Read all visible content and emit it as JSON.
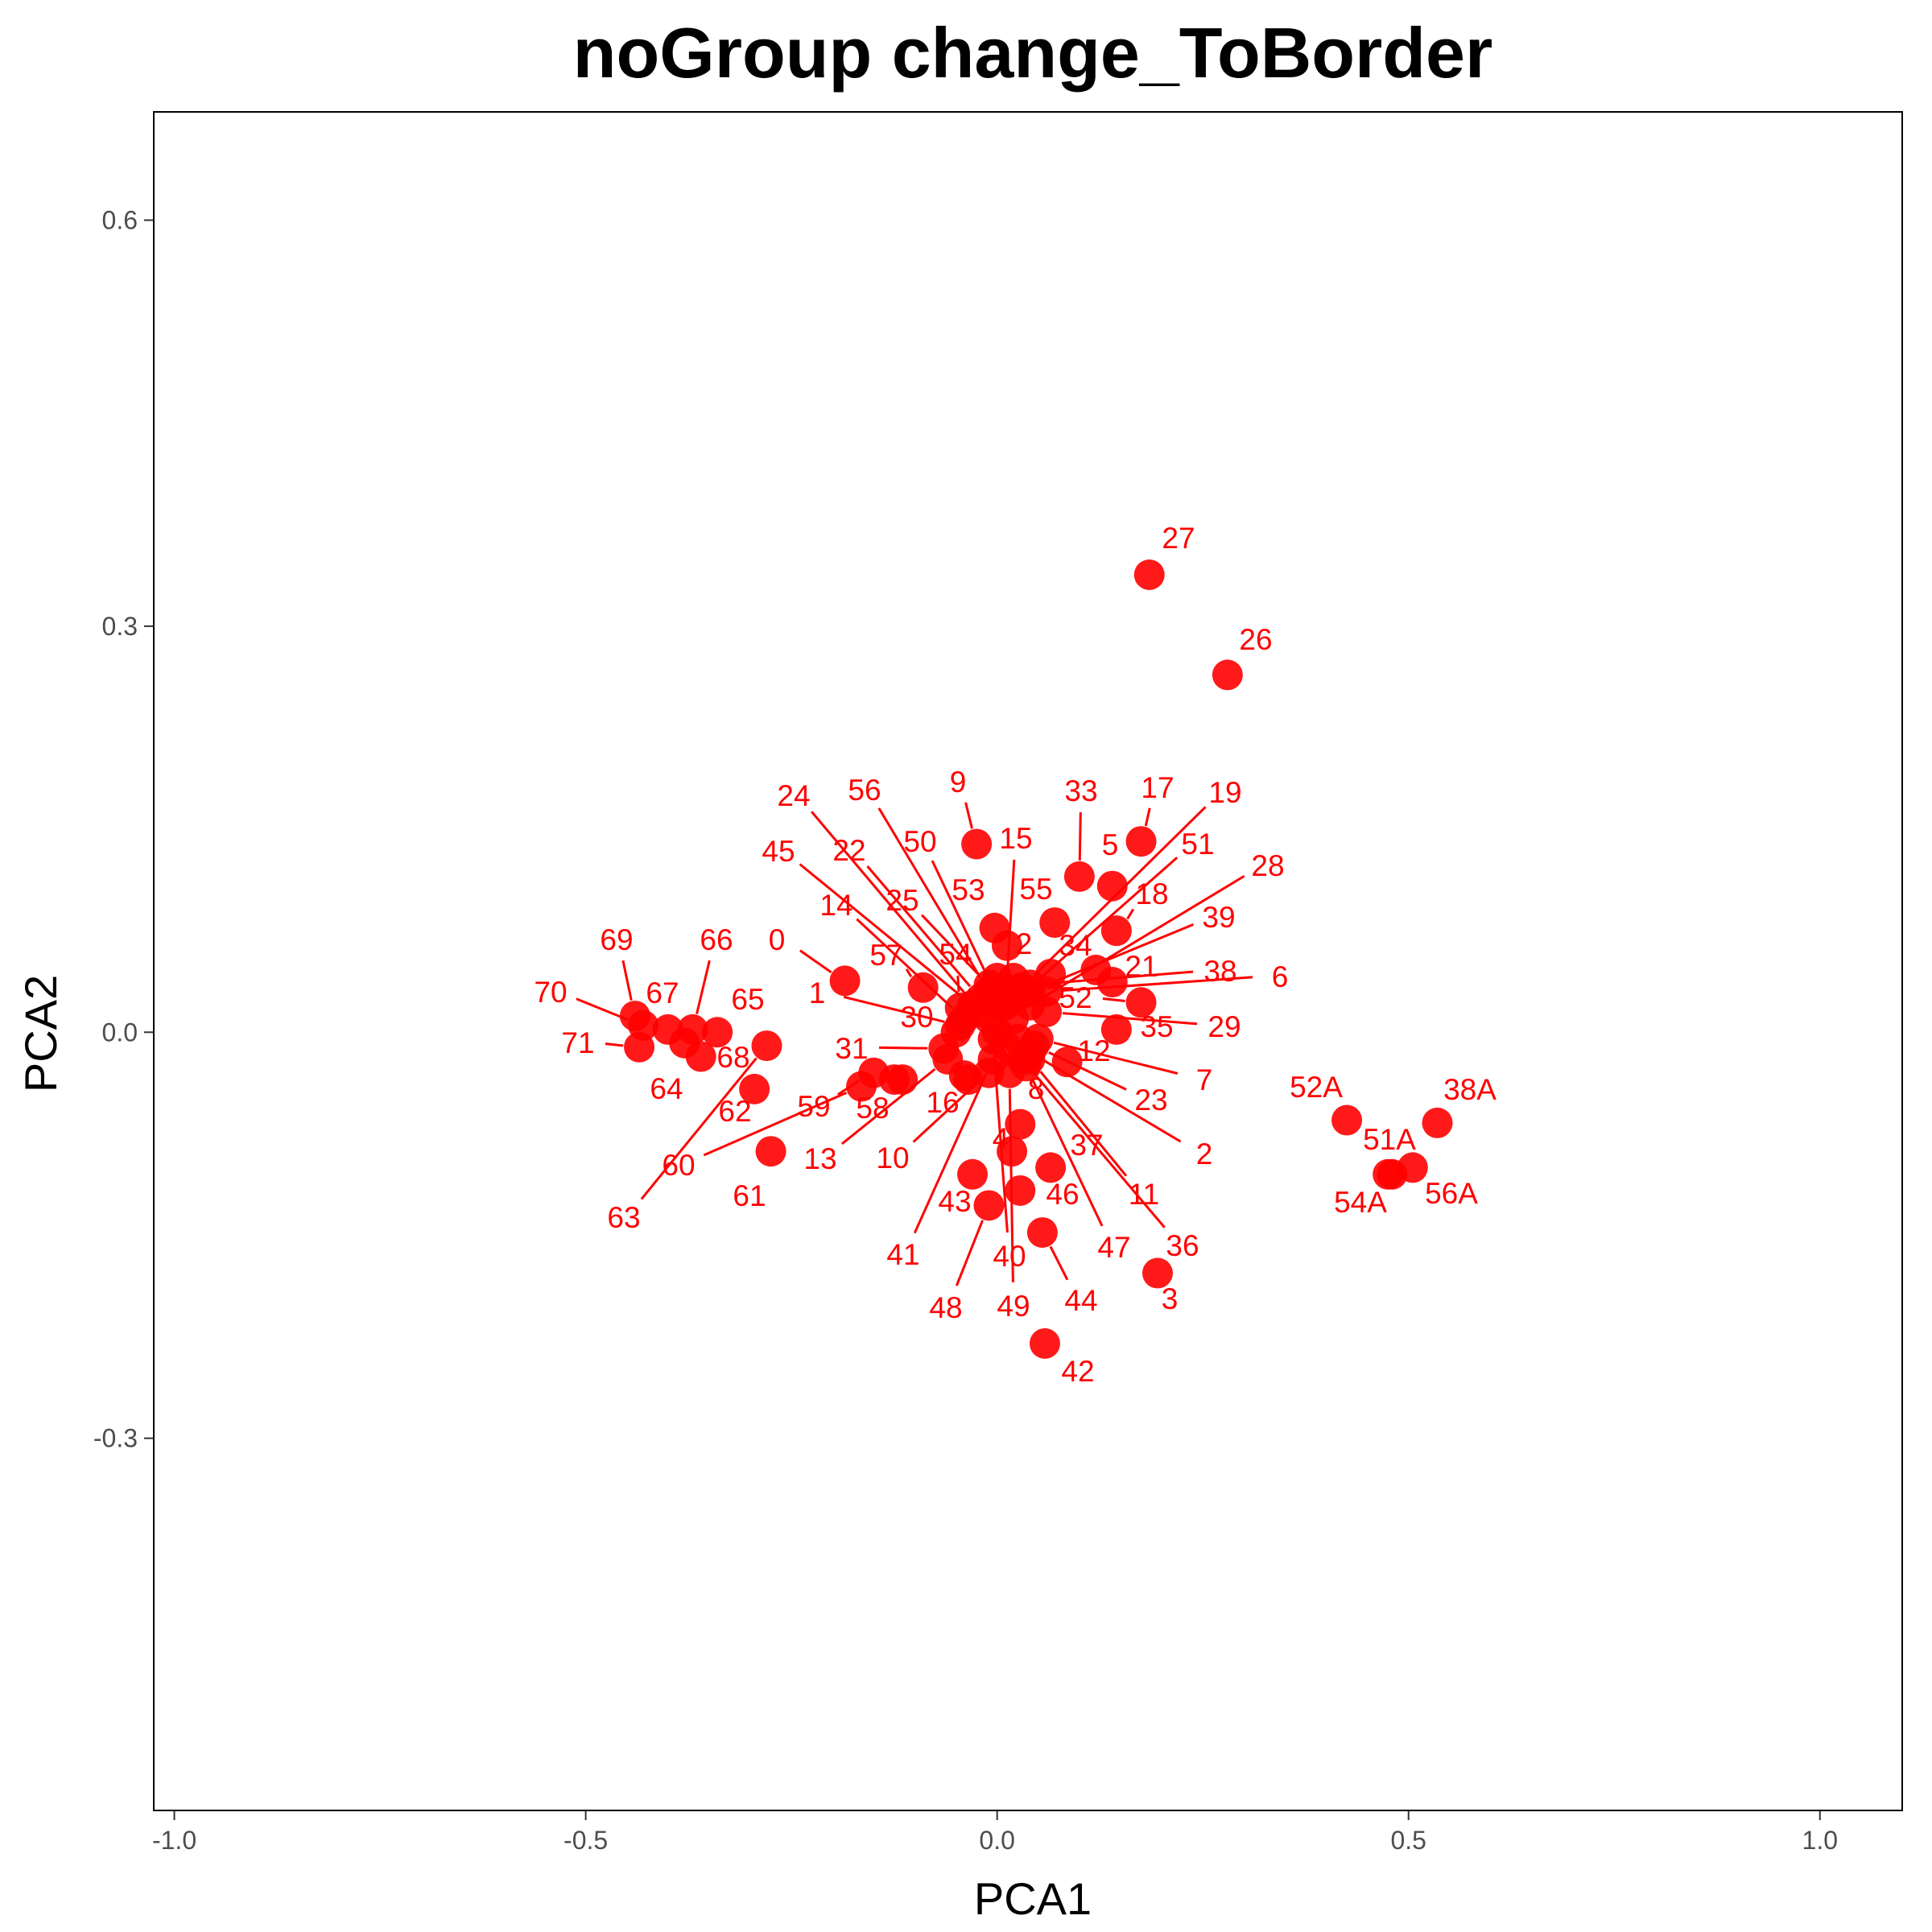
{
  "chart_data": {
    "type": "scatter",
    "title": "noGroup change_ToBorder",
    "xlabel": "PCA1",
    "ylabel": "PCA2",
    "xlim": [
      -1.025,
      1.1
    ],
    "ylim": [
      -0.575,
      0.68
    ],
    "xticks": [
      -1.0,
      -0.5,
      0.0,
      0.5,
      1.0
    ],
    "xtick_labels": [
      "-1.0",
      "-0.5",
      "0.0",
      "0.5",
      "1.0"
    ],
    "yticks": [
      -0.3,
      0.0,
      0.3,
      0.6
    ],
    "ytick_labels": [
      "-0.3",
      "0.0",
      "0.3",
      "0.6"
    ],
    "grid": false,
    "legend": "none",
    "colors": {
      "point": "#ff0000",
      "label": "#ff0000",
      "frame": "#000000",
      "tick": "#333333"
    },
    "points": [
      {
        "label": "27",
        "x": 0.185,
        "y": 0.338
      },
      {
        "label": "26",
        "x": 0.28,
        "y": 0.264
      },
      {
        "label": "17",
        "x": 0.175,
        "y": 0.141
      },
      {
        "label": "19",
        "x": 0.03,
        "y": 0.033
      },
      {
        "label": "33",
        "x": 0.1,
        "y": 0.115
      },
      {
        "label": "5",
        "x": 0.14,
        "y": 0.108
      },
      {
        "label": "9",
        "x": -0.025,
        "y": 0.139
      },
      {
        "label": "15",
        "x": 0.01,
        "y": 0.02
      },
      {
        "label": "51",
        "x": 0.03,
        "y": 0.028
      },
      {
        "label": "28",
        "x": 0.04,
        "y": 0.02
      },
      {
        "label": "18",
        "x": 0.145,
        "y": 0.075
      },
      {
        "label": "39",
        "x": 0.04,
        "y": 0.03
      },
      {
        "label": "55",
        "x": 0.07,
        "y": 0.081
      },
      {
        "label": "53",
        "x": -0.003,
        "y": 0.077
      },
      {
        "label": "2",
        "x": 0.012,
        "y": 0.064
      },
      {
        "label": "34",
        "x": 0.12,
        "y": 0.046
      },
      {
        "label": "21",
        "x": 0.14,
        "y": 0.037
      },
      {
        "label": "38",
        "x": 0.04,
        "y": 0.035
      },
      {
        "label": "6",
        "x": 0.06,
        "y": 0.03
      },
      {
        "label": "52",
        "x": 0.175,
        "y": 0.022
      },
      {
        "label": "35",
        "x": 0.145,
        "y": 0.002
      },
      {
        "label": "29",
        "x": 0.06,
        "y": 0.015
      },
      {
        "label": "12",
        "x": 0.085,
        "y": -0.022
      },
      {
        "label": "7",
        "x": 0.05,
        "y": -0.005
      },
      {
        "label": "23",
        "x": 0.045,
        "y": -0.01
      },
      {
        "label": "2",
        "x": 0.04,
        "y": -0.015
      },
      {
        "label": "8",
        "x": 0.028,
        "y": -0.068
      },
      {
        "label": "4",
        "x": 0.018,
        "y": -0.088
      },
      {
        "label": "37",
        "x": 0.065,
        "y": -0.1
      },
      {
        "label": "11",
        "x": 0.04,
        "y": -0.02
      },
      {
        "label": "46",
        "x": 0.028,
        "y": -0.117
      },
      {
        "label": "47",
        "x": 0.035,
        "y": -0.025
      },
      {
        "label": "36",
        "x": 0.03,
        "y": -0.02
      },
      {
        "label": "3",
        "x": 0.195,
        "y": -0.178
      },
      {
        "label": "44",
        "x": 0.055,
        "y": -0.148
      },
      {
        "label": "42",
        "x": 0.058,
        "y": -0.23
      },
      {
        "label": "40",
        "x": -0.005,
        "y": -0.005
      },
      {
        "label": "49",
        "x": 0.015,
        "y": -0.03
      },
      {
        "label": "43",
        "x": -0.03,
        "y": -0.105
      },
      {
        "label": "48",
        "x": -0.01,
        "y": -0.128
      },
      {
        "label": "41",
        "x": -0.005,
        "y": -0.02
      },
      {
        "label": "16",
        "x": -0.04,
        "y": -0.032
      },
      {
        "label": "10",
        "x": -0.01,
        "y": -0.03
      },
      {
        "label": "13",
        "x": -0.06,
        "y": -0.02
      },
      {
        "label": "58",
        "x": -0.125,
        "y": -0.035
      },
      {
        "label": "59",
        "x": -0.15,
        "y": -0.03
      },
      {
        "label": "31",
        "x": -0.065,
        "y": -0.012
      },
      {
        "label": "30",
        "x": -0.05,
        "y": 0.0
      },
      {
        "label": "1",
        "x": -0.045,
        "y": 0.005
      },
      {
        "label": "0",
        "x": -0.185,
        "y": 0.038
      },
      {
        "label": "57",
        "x": -0.09,
        "y": 0.033
      },
      {
        "label": "54",
        "x": -0.045,
        "y": 0.018
      },
      {
        "label": "14",
        "x": -0.04,
        "y": 0.01
      },
      {
        "label": "25",
        "x": -0.01,
        "y": 0.035
      },
      {
        "label": "45",
        "x": -0.03,
        "y": 0.02
      },
      {
        "label": "22",
        "x": -0.02,
        "y": 0.025
      },
      {
        "label": "50",
        "x": 0.005,
        "y": 0.02
      },
      {
        "label": "56",
        "x": -0.01,
        "y": 0.03
      },
      {
        "label": "24",
        "x": -0.02,
        "y": 0.015
      },
      {
        "label": "60",
        "x": -0.165,
        "y": -0.04
      },
      {
        "label": "63",
        "x": -0.28,
        "y": -0.01
      },
      {
        "label": "62",
        "x": -0.295,
        "y": -0.042
      },
      {
        "label": "61",
        "x": -0.275,
        "y": -0.088
      },
      {
        "label": "65",
        "x": -0.34,
        "y": 0.0
      },
      {
        "label": "66",
        "x": -0.37,
        "y": 0.002
      },
      {
        "label": "68",
        "x": -0.36,
        "y": -0.018
      },
      {
        "label": "64",
        "x": -0.38,
        "y": -0.008
      },
      {
        "label": "67",
        "x": -0.4,
        "y": 0.002
      },
      {
        "label": "69",
        "x": -0.44,
        "y": 0.012
      },
      {
        "label": "70",
        "x": -0.43,
        "y": 0.005
      },
      {
        "label": "71",
        "x": -0.435,
        "y": -0.011
      },
      {
        "label": "52A",
        "x": 0.425,
        "y": -0.065
      },
      {
        "label": "38A",
        "x": 0.535,
        "y": -0.067
      },
      {
        "label": "51A",
        "x": 0.48,
        "y": -0.105
      },
      {
        "label": "54A",
        "x": 0.475,
        "y": -0.105
      },
      {
        "label": "56A",
        "x": 0.505,
        "y": -0.1
      }
    ],
    "extra_points": [
      {
        "x": -0.115,
        "y": -0.035
      },
      {
        "x": -0.035,
        "y": -0.035
      },
      {
        "x": 0.02,
        "y": 0.04
      },
      {
        "x": 0.0,
        "y": 0.04
      },
      {
        "x": 0.0,
        "y": 0.0
      },
      {
        "x": 0.01,
        "y": -0.01
      },
      {
        "x": -0.01,
        "y": 0.01
      },
      {
        "x": 0.02,
        "y": 0.01
      },
      {
        "x": -0.005,
        "y": 0.025
      },
      {
        "x": 0.015,
        "y": 0.03
      },
      {
        "x": 0.025,
        "y": -0.005
      },
      {
        "x": 0.065,
        "y": 0.043
      }
    ]
  }
}
